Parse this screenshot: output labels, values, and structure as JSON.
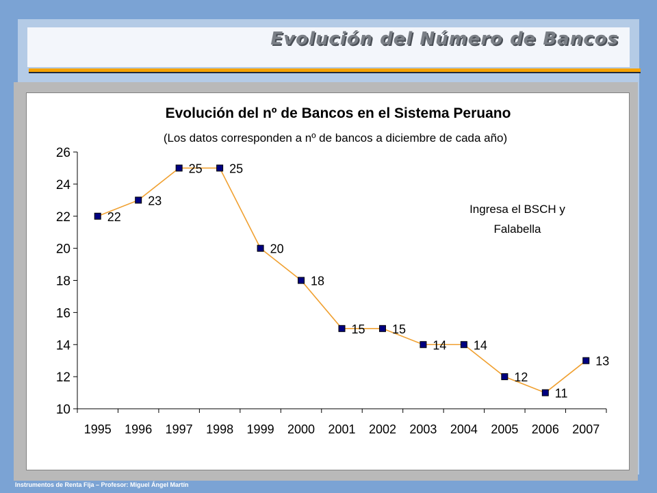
{
  "slide": {
    "title": "Evolución del Número de Bancos",
    "footer": "Instrumentos de Renta Fija – Profesor: Miguel Ángel Martín"
  },
  "colors": {
    "line": "#f0a030",
    "marker_fill": "#000080",
    "accent": "#f5a200",
    "frame": "#7ba3d4"
  },
  "chart_data": {
    "type": "line",
    "title": "Evolución del nº de Bancos en el Sistema Peruano",
    "subtitle": "(Los datos corresponden a nº de bancos a diciembre de cada año)",
    "categories": [
      "1995",
      "1996",
      "1997",
      "1998",
      "1999",
      "2000",
      "2001",
      "2002",
      "2003",
      "2004",
      "2005",
      "2006",
      "2007"
    ],
    "values": [
      22,
      23,
      25,
      25,
      20,
      18,
      15,
      15,
      14,
      14,
      12,
      11,
      13
    ],
    "ylim": [
      10,
      26
    ],
    "yticks": [
      10,
      12,
      14,
      16,
      18,
      20,
      22,
      24,
      26
    ],
    "grid": false,
    "legend": "none",
    "annotation": [
      "Ingresa el BSCH y",
      "Falabella"
    ]
  }
}
